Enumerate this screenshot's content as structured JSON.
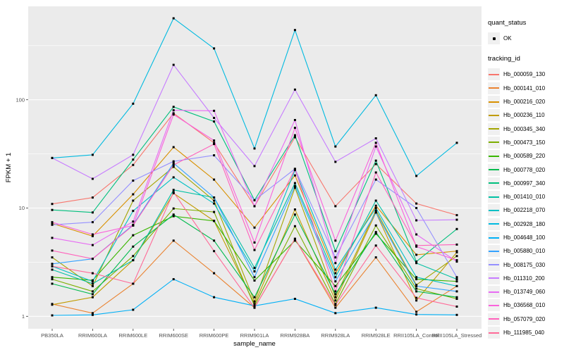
{
  "figure": {
    "background": "#FFFFFF"
  },
  "legend": {
    "quant_status": {
      "title": "quant_status",
      "items": [
        {
          "label": "OK",
          "marker": "point-black"
        }
      ]
    },
    "tracking_id": {
      "title": "tracking_id"
    }
  },
  "chart_data": {
    "type": "line",
    "title": "",
    "xlabel": "sample_name",
    "ylabel": "FPKM + 1",
    "y_scale": "log10",
    "ylim": [
      0.79,
      710
    ],
    "y_ticks": [
      1,
      10,
      100
    ],
    "y_minor_ticks": [
      3.1623,
      31.623,
      316.23
    ],
    "grid": true,
    "legend_position": "right",
    "panel_bg": "#EBEBEB",
    "grid_color": "#FFFFFF",
    "tick_label_color": "#4D4D4D",
    "point_color": "#000000",
    "point_shape": "square",
    "categories": [
      "PB350LA",
      "RRIM600LA",
      "RRIM600LE",
      "RRIM600SE",
      "RRIM600PE",
      "RRIM901LA",
      "RRIM928BA",
      "RRIM928LA",
      "RRIM928LE",
      "RRII105LA_Control",
      "RRII105LA_Stressed"
    ],
    "series": [
      {
        "name": "Hb_000059_130",
        "color": "#F8766D",
        "values": [
          10.9,
          12.5,
          25,
          75,
          40,
          10.4,
          45,
          10.4,
          25.5,
          11,
          8.6
        ]
      },
      {
        "name": "Hb_000141_010",
        "color": "#EA8331",
        "values": [
          1.3,
          1.07,
          2.0,
          5.0,
          2.5,
          1.2,
          5.2,
          1.2,
          3.5,
          1.1,
          1.9
        ]
      },
      {
        "name": "Hb_000216_020",
        "color": "#D89000",
        "values": [
          7.2,
          5.5,
          13.4,
          36.5,
          18.3,
          6.6,
          20,
          2.5,
          10.5,
          3.7,
          4.0
        ]
      },
      {
        "name": "Hb_000236_110",
        "color": "#C09B00",
        "values": [
          1.28,
          1.5,
          3.3,
          13.7,
          7.6,
          1.3,
          9.7,
          1.4,
          9.1,
          1.4,
          3.9
        ]
      },
      {
        "name": "Hb_000345_340",
        "color": "#A3A500",
        "values": [
          3.5,
          1.9,
          11.7,
          24,
          11.7,
          1.37,
          15.4,
          1.5,
          9.5,
          1.95,
          3.6
        ]
      },
      {
        "name": "Hb_000473_150",
        "color": "#7CAE00",
        "values": [
          2.2,
          1.7,
          3.6,
          9.9,
          9.2,
          1.25,
          6.8,
          1.3,
          6.9,
          1.8,
          1.45
        ]
      },
      {
        "name": "Hb_000589_220",
        "color": "#39B600",
        "values": [
          2.3,
          2.15,
          5.6,
          8.4,
          7.6,
          2.14,
          5.0,
          1.9,
          5.8,
          2.2,
          2.1
        ]
      },
      {
        "name": "Hb_000778_020",
        "color": "#00BB4E",
        "values": [
          2.0,
          1.6,
          4.4,
          8.7,
          5.0,
          1.5,
          8.7,
          1.6,
          6.0,
          1.7,
          1.5
        ]
      },
      {
        "name": "Hb_000997_340",
        "color": "#00BF7D",
        "values": [
          9.6,
          9.1,
          28,
          86,
          63,
          11.8,
          47,
          4.0,
          27.4,
          3.2,
          6.4
        ]
      },
      {
        "name": "Hb_001410_010",
        "color": "#00C1A3",
        "values": [
          2.7,
          2.0,
          3.3,
          14.7,
          12.5,
          2.8,
          17,
          2.3,
          11.7,
          3.1,
          2.2
        ]
      },
      {
        "name": "Hb_002218_070",
        "color": "#00BFC4",
        "values": [
          2.9,
          2.1,
          9.4,
          19.2,
          11,
          2.6,
          22.4,
          2.7,
          10,
          2.3,
          1.9
        ]
      },
      {
        "name": "Hb_002928_180",
        "color": "#00BAE0",
        "values": [
          29,
          31,
          92,
          565,
          298,
          35.5,
          440,
          37,
          110,
          19.8,
          40
        ]
      },
      {
        "name": "Hb_004648_100",
        "color": "#00B0F6",
        "values": [
          1.02,
          1.03,
          1.15,
          2.2,
          1.5,
          1.25,
          1.45,
          1.07,
          1.2,
          1.04,
          1.03
        ]
      },
      {
        "name": "Hb_005880_010",
        "color": "#35A2FF",
        "values": [
          3.05,
          3.4,
          7.0,
          26,
          12.5,
          2.3,
          16,
          2.1,
          9.1,
          1.9,
          1.7
        ]
      },
      {
        "name": "Hb_008175_030",
        "color": "#9590FF",
        "values": [
          7.0,
          7.4,
          17.9,
          27,
          30.7,
          11.8,
          23,
          3.5,
          18.3,
          10,
          2.3
        ]
      },
      {
        "name": "Hb_011310_200",
        "color": "#C77CFF",
        "values": [
          29,
          18.6,
          31,
          210,
          68,
          24.4,
          124,
          26.7,
          44,
          7.7,
          7.8
        ]
      },
      {
        "name": "Hb_013749_060",
        "color": "#E76BF3",
        "values": [
          5.3,
          4.55,
          7.5,
          80,
          79,
          10.4,
          65,
          3.1,
          37,
          5.7,
          3.2
        ]
      },
      {
        "name": "Hb_036568_010",
        "color": "#FA62DB",
        "values": [
          7.4,
          5.7,
          6.9,
          73,
          42,
          4.8,
          55,
          5.0,
          40,
          4.4,
          3.3
        ]
      },
      {
        "name": "Hb_057079_020",
        "color": "#FF62BC",
        "values": [
          4.05,
          3.4,
          6.9,
          25,
          39,
          4.1,
          23,
          1.7,
          21.3,
          4.5,
          4.6
        ]
      },
      {
        "name": "Hb_111985_040",
        "color": "#FF6A98",
        "values": [
          2.9,
          2.5,
          2.0,
          14,
          4.0,
          1.2,
          5.2,
          1.27,
          4.5,
          1.48,
          1.23
        ]
      }
    ]
  }
}
